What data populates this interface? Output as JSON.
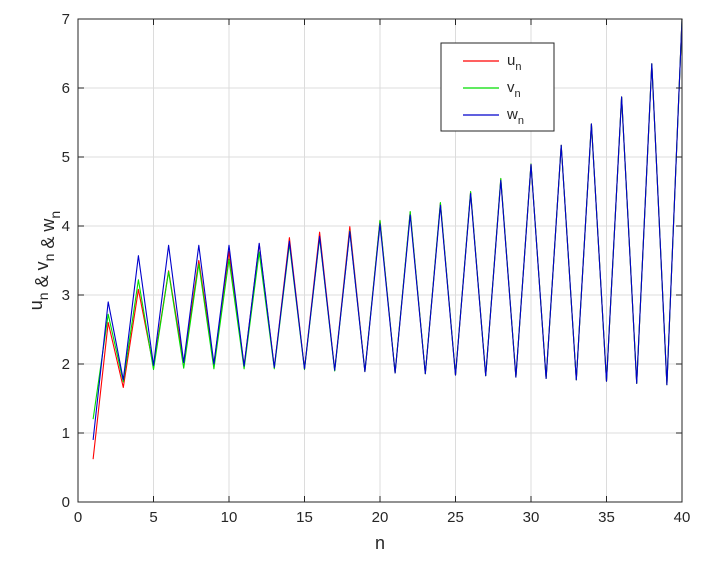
{
  "chart_data": {
    "type": "line",
    "xlabel": "n",
    "ylabel": {
      "parts": [
        {
          "text": "u",
          "sub": "n"
        },
        {
          "text": " & v",
          "sub": "n"
        },
        {
          "text": " & w",
          "sub": "n"
        }
      ]
    },
    "xlim": [
      0,
      40
    ],
    "ylim": [
      0,
      7
    ],
    "xticks": [
      0,
      5,
      10,
      15,
      20,
      25,
      30,
      35,
      40
    ],
    "yticks": [
      0,
      1,
      2,
      3,
      4,
      5,
      6,
      7
    ],
    "grid": true,
    "legend_position": "top-right",
    "x": [
      1,
      2,
      3,
      4,
      5,
      6,
      7,
      8,
      9,
      10,
      11,
      12,
      13,
      14,
      15,
      16,
      17,
      18,
      19,
      20,
      21,
      22,
      23,
      24,
      25,
      26,
      27,
      28,
      29,
      30,
      31,
      32,
      33,
      34,
      35,
      36,
      37,
      38,
      39,
      40
    ],
    "series": [
      {
        "name": "u",
        "sub": "n",
        "color": "#ff0000",
        "values": [
          0.62,
          2.6,
          1.66,
          3.08,
          1.96,
          3.35,
          2.02,
          3.5,
          2.0,
          3.63,
          1.97,
          3.74,
          1.95,
          3.83,
          1.93,
          3.91,
          1.91,
          3.99,
          1.89,
          4.08,
          1.87,
          4.2,
          1.86,
          4.33,
          1.84,
          4.49,
          1.83,
          4.68,
          1.81,
          4.9,
          1.79,
          5.17,
          1.77,
          5.48,
          1.75,
          5.87,
          1.72,
          6.35,
          1.7,
          7.0
        ]
      },
      {
        "name": "v",
        "sub": "n",
        "color": "#00dd00",
        "values": [
          1.2,
          2.72,
          1.74,
          3.22,
          1.92,
          3.34,
          1.94,
          3.45,
          1.93,
          3.52,
          1.93,
          3.62,
          1.93,
          3.74,
          1.92,
          3.83,
          1.9,
          3.93,
          1.89,
          4.08,
          1.87,
          4.21,
          1.86,
          4.34,
          1.84,
          4.5,
          1.83,
          4.69,
          1.81,
          4.9,
          1.79,
          5.17,
          1.77,
          5.48,
          1.75,
          5.87,
          1.72,
          6.35,
          1.7,
          7.0
        ]
      },
      {
        "name": "w",
        "sub": "n",
        "color": "#0000cc",
        "values": [
          0.9,
          2.9,
          1.77,
          3.57,
          1.98,
          3.72,
          2.02,
          3.72,
          2.0,
          3.72,
          1.97,
          3.75,
          1.95,
          3.78,
          1.93,
          3.85,
          1.91,
          3.92,
          1.89,
          4.03,
          1.87,
          4.16,
          1.86,
          4.3,
          1.84,
          4.47,
          1.83,
          4.66,
          1.81,
          4.89,
          1.79,
          5.17,
          1.77,
          5.48,
          1.75,
          5.87,
          1.72,
          6.35,
          1.7,
          7.0
        ]
      }
    ]
  }
}
